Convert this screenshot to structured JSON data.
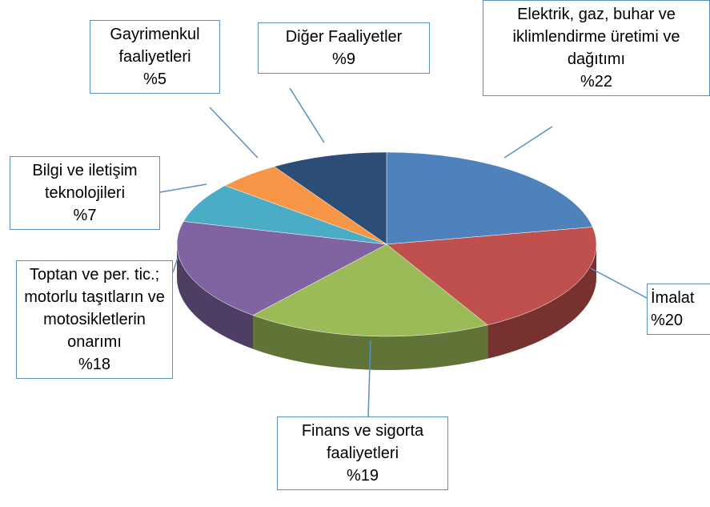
{
  "chart_data": {
    "type": "pie",
    "categories": [
      "Elektrik, gaz, buhar ve iklimlendirme üretimi ve dağıtımı",
      "İmalat",
      "Finans ve sigorta faaliyetleri",
      "Toptan ve per. tic.; motorlu taşıtların ve motosikletlerin onarımı",
      "Bilgi ve iletişim teknolojileri",
      "Gayrimenkul faaliyetleri",
      "Diğer Faaliyetler"
    ],
    "values": [
      22,
      20,
      19,
      18,
      7,
      5,
      9
    ],
    "value_labels": [
      "%22",
      "%20",
      "%19",
      "%18",
      "%7",
      "%5",
      "%9"
    ],
    "colors": [
      "#4f81bd",
      "#c0504d",
      "#9bbb59",
      "#8064a2",
      "#4bacc6",
      "#f79646",
      "#2c4d75"
    ]
  }
}
